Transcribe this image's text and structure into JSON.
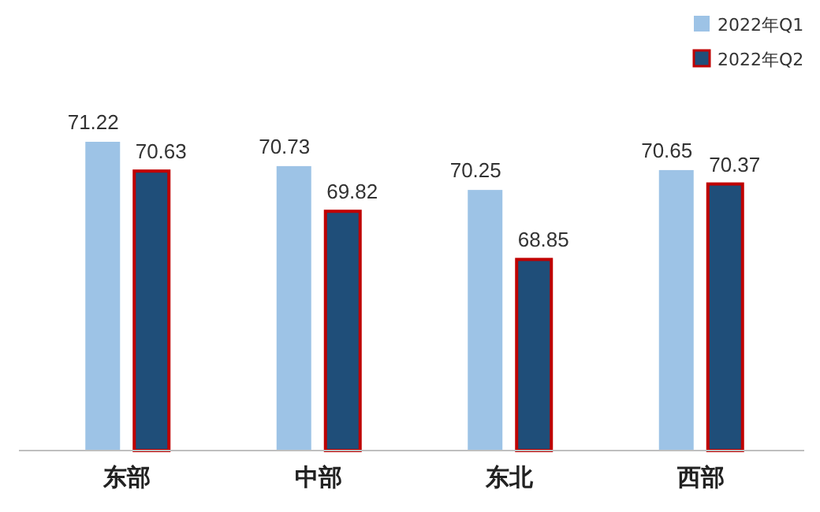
{
  "chart_data": {
    "type": "bar",
    "categories": [
      "东部",
      "中部",
      "东北",
      "西部"
    ],
    "series": [
      {
        "name": "2022年Q1",
        "color": "#9dc3e6",
        "values": [
          71.22,
          70.73,
          70.25,
          70.65
        ]
      },
      {
        "name": "2022年Q2",
        "color": "#1f4e79",
        "values": [
          70.63,
          69.82,
          68.85,
          70.37
        ]
      }
    ],
    "ylim": [
      65,
      71.22
    ],
    "data_labels": true,
    "legend": "top right",
    "grid": false
  }
}
